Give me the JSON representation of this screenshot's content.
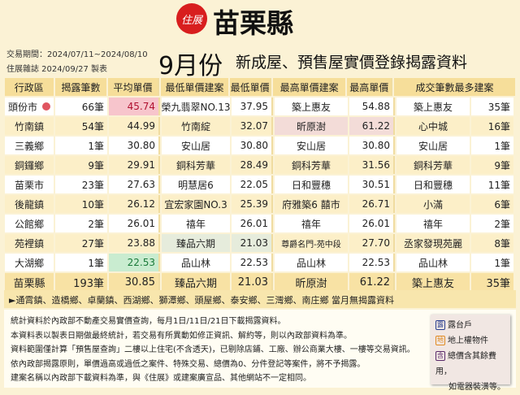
{
  "brand": {
    "logo_text": "住展",
    "county": "苗栗縣"
  },
  "meta": {
    "period": "交易期間：2024/07/11~2024/08/10",
    "made": "住展雜誌 2024/09/27 製表"
  },
  "title": {
    "month": "9月份",
    "subtitle": "新成屋、預售屋實價登錄揭露資料"
  },
  "headers": [
    "行政區",
    "揭露筆數",
    "平均單價",
    "最低單價建案",
    "最低單價",
    "最高單價建案",
    "最高單價",
    "成交筆數最多建案"
  ],
  "rows": [
    [
      "頭份市",
      "66筆",
      "45.74",
      "榮九翡翠NO.13",
      "37.95",
      "築上惠友",
      "54.88",
      "築上惠友",
      "35筆"
    ],
    [
      "竹南鎮",
      "54筆",
      "44.99",
      "竹南綻",
      "32.07",
      "昕原澍",
      "61.22",
      "心中城",
      "16筆"
    ],
    [
      "三義鄉",
      "1筆",
      "30.80",
      "安山居",
      "30.80",
      "安山居",
      "30.80",
      "安山居",
      "1筆"
    ],
    [
      "銅鑼鄉",
      "9筆",
      "29.91",
      "銅科芳華",
      "28.49",
      "銅科芳華",
      "31.56",
      "銅科芳華",
      "9筆"
    ],
    [
      "苗栗市",
      "23筆",
      "27.63",
      "明慧居6",
      "22.05",
      "日和豐穗",
      "30.51",
      "日和豐穗",
      "11筆"
    ],
    [
      "後龍鎮",
      "10筆",
      "26.12",
      "宜宏家園NO.3",
      "25.39",
      "府雅築6 囍市",
      "26.71",
      "小滿",
      "6筆"
    ],
    [
      "公館鄉",
      "2筆",
      "26.01",
      "禧年",
      "26.01",
      "禧年",
      "26.01",
      "禧年",
      "2筆"
    ],
    [
      "苑裡鎮",
      "27筆",
      "23.88",
      "臻品六期",
      "21.03",
      "尊爵名門-苑中段",
      "27.70",
      "丞家發現苑麗",
      "8筆"
    ],
    [
      "大湖鄉",
      "1筆",
      "22.53",
      "品山林",
      "22.53",
      "品山林",
      "22.53",
      "品山林",
      "1筆"
    ]
  ],
  "total": [
    "苗栗縣",
    "193筆",
    "30.85",
    "臻品六期",
    "21.03",
    "昕原澍",
    "61.22",
    "築上惠友",
    "35筆"
  ],
  "no_data": "►通霄鎮、造橋鄉、卓蘭鎮、西湖鄉、獅潭鄉、頭屋鄉、泰安鄉、三灣鄉、南庄鄉 當月無揭露資料",
  "notes": [
    "統計資料於內政部不動產交易實價查詢，每月1日/11日/21日下載揭露資料。",
    "本資料表以製表日期做最終統計，若交易有所異動如修正資訊、解約等，則以內政部資料為準。",
    "資料範圍僅計算「預售屋查詢」二樓以上住宅(不含透天)，已剔除店鋪、工廠、辦公商業大樓、一樓等交易資訊。",
    "依內政部揭露原則，單價過高或過低之案件、特殊交易、總價為0、分件登記等案件，將不予揭露。",
    "建案名稱以內政部下載資料為準，與《住展》或建案廣宣品、其他網站不一定相同。"
  ],
  "legend": [
    {
      "tag": "露",
      "label": "露台戶",
      "color": "#2a3f8f"
    },
    {
      "tag": "地",
      "label": "地上權物件",
      "color": "#e08a20"
    },
    {
      "tag": "含",
      "label": "總價含其餘費用，",
      "color": "#5a2a6a"
    }
  ],
  "legend_extra": "如電器裝潢等。",
  "colors": {
    "high": "#f7c5cc",
    "low": "#c9ecd0",
    "header": "#f6de9a"
  }
}
